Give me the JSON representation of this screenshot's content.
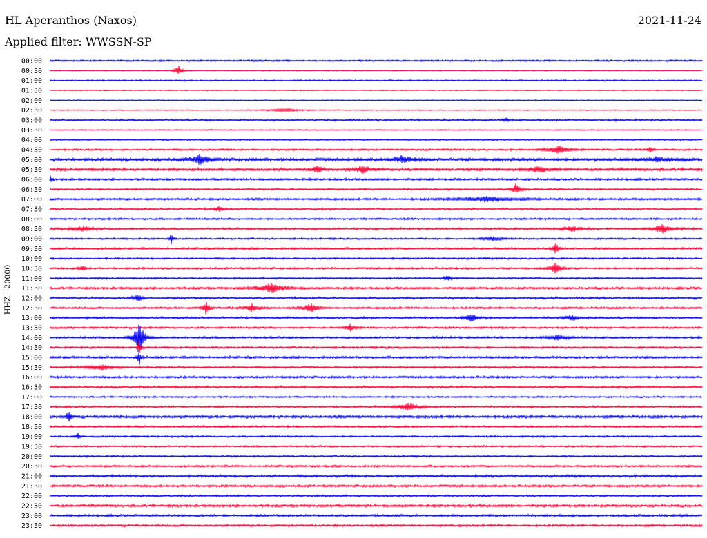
{
  "header": {
    "station": "HL Aperanthos (Naxos)",
    "date": "2021-11-24",
    "filter": "Applied filter: WWSSN-SP"
  },
  "channel_label": "HHZ - 20000",
  "colors": {
    "a": "#0000ee",
    "b": "#ff0033"
  },
  "rows": [
    "00:00",
    "00:30",
    "01:00",
    "01:30",
    "02:00",
    "02:30",
    "03:00",
    "03:30",
    "04:00",
    "04:30",
    "05:00",
    "05:30",
    "06:00",
    "06:30",
    "07:00",
    "07:30",
    "08:00",
    "08:30",
    "09:00",
    "09:30",
    "10:00",
    "10:30",
    "11:00",
    "11:30",
    "12:00",
    "12:30",
    "13:00",
    "13:30",
    "14:00",
    "14:30",
    "15:00",
    "15:30",
    "16:00",
    "16:30",
    "17:00",
    "17:30",
    "18:00",
    "18:30",
    "19:00",
    "19:30",
    "20:00",
    "20:30",
    "21:00",
    "21:30",
    "22:00",
    "22:30",
    "23:00",
    "23:30"
  ],
  "noise": [
    1.2,
    0.6,
    1.0,
    0.7,
    0.6,
    0.7,
    1.4,
    0.7,
    1.0,
    1.3,
    2.2,
    2.0,
    1.5,
    1.3,
    1.5,
    1.3,
    1.3,
    1.5,
    1.2,
    1.5,
    1.3,
    1.4,
    1.3,
    1.6,
    1.5,
    1.5,
    1.5,
    1.4,
    1.5,
    1.5,
    1.6,
    1.4,
    1.5,
    1.5,
    1.1,
    1.4,
    2.0,
    1.4,
    1.3,
    1.3,
    1.3,
    1.4,
    1.7,
    1.6,
    1.3,
    1.8,
    1.6,
    1.6
  ],
  "events": [
    {
      "row": 1,
      "t": 0.197,
      "amp": 9,
      "w": 0.004
    },
    {
      "row": 5,
      "t": 0.36,
      "amp": 2,
      "w": 0.02
    },
    {
      "row": 6,
      "t": 0.7,
      "amp": 3,
      "w": 0.003
    },
    {
      "row": 9,
      "t": 0.78,
      "amp": 6,
      "w": 0.012
    },
    {
      "row": 9,
      "t": 0.92,
      "amp": 4,
      "w": 0.004
    },
    {
      "row": 10,
      "t": 0.23,
      "amp": 7,
      "w": 0.012
    },
    {
      "row": 10,
      "t": 0.54,
      "amp": 5,
      "w": 0.012
    },
    {
      "row": 10,
      "t": 0.93,
      "amp": 3,
      "w": 0.02
    },
    {
      "row": 11,
      "t": 0.41,
      "amp": 7,
      "w": 0.005
    },
    {
      "row": 11,
      "t": 0.48,
      "amp": 5,
      "w": 0.01
    },
    {
      "row": 11,
      "t": 0.75,
      "amp": 4,
      "w": 0.012
    },
    {
      "row": 12,
      "t": 0.001,
      "amp": 6,
      "w": 0.002
    },
    {
      "row": 13,
      "t": 0.715,
      "amp": 8,
      "w": 0.005
    },
    {
      "row": 14,
      "t": 0.67,
      "amp": 4,
      "w": 0.03
    },
    {
      "row": 15,
      "t": 0.26,
      "amp": 4,
      "w": 0.006
    },
    {
      "row": 17,
      "t": 0.05,
      "amp": 4,
      "w": 0.012
    },
    {
      "row": 17,
      "t": 0.8,
      "amp": 4,
      "w": 0.01
    },
    {
      "row": 17,
      "t": 0.94,
      "amp": 6,
      "w": 0.012
    },
    {
      "row": 18,
      "t": 0.186,
      "amp": 8,
      "w": 0.002
    },
    {
      "row": 18,
      "t": 0.68,
      "amp": 3,
      "w": 0.01
    },
    {
      "row": 19,
      "t": 0.775,
      "amp": 8,
      "w": 0.004
    },
    {
      "row": 21,
      "t": 0.05,
      "amp": 5,
      "w": 0.004
    },
    {
      "row": 21,
      "t": 0.775,
      "amp": 9,
      "w": 0.006
    },
    {
      "row": 22,
      "t": 0.61,
      "amp": 4,
      "w": 0.004
    },
    {
      "row": 23,
      "t": 0.34,
      "amp": 7,
      "w": 0.015
    },
    {
      "row": 24,
      "t": 0.135,
      "amp": 7,
      "w": 0.004
    },
    {
      "row": 25,
      "t": 0.24,
      "amp": 9,
      "w": 0.004
    },
    {
      "row": 25,
      "t": 0.31,
      "amp": 5,
      "w": 0.01
    },
    {
      "row": 25,
      "t": 0.4,
      "amp": 7,
      "w": 0.008
    },
    {
      "row": 26,
      "t": 0.645,
      "amp": 8,
      "w": 0.006
    },
    {
      "row": 26,
      "t": 0.8,
      "amp": 4,
      "w": 0.008
    },
    {
      "row": 27,
      "t": 0.46,
      "amp": 6,
      "w": 0.005
    },
    {
      "row": 28,
      "t": 0.137,
      "amp": 26,
      "w": 0.006
    },
    {
      "row": 28,
      "t": 0.78,
      "amp": 4,
      "w": 0.01
    },
    {
      "row": 29,
      "t": 0.137,
      "amp": 12,
      "w": 0.002
    },
    {
      "row": 30,
      "t": 0.137,
      "amp": 12,
      "w": 0.002
    },
    {
      "row": 31,
      "t": 0.08,
      "amp": 4,
      "w": 0.015
    },
    {
      "row": 35,
      "t": 0.55,
      "amp": 5,
      "w": 0.015
    },
    {
      "row": 36,
      "t": 0.03,
      "amp": 9,
      "w": 0.003
    },
    {
      "row": 38,
      "t": 0.043,
      "amp": 5,
      "w": 0.003
    }
  ]
}
